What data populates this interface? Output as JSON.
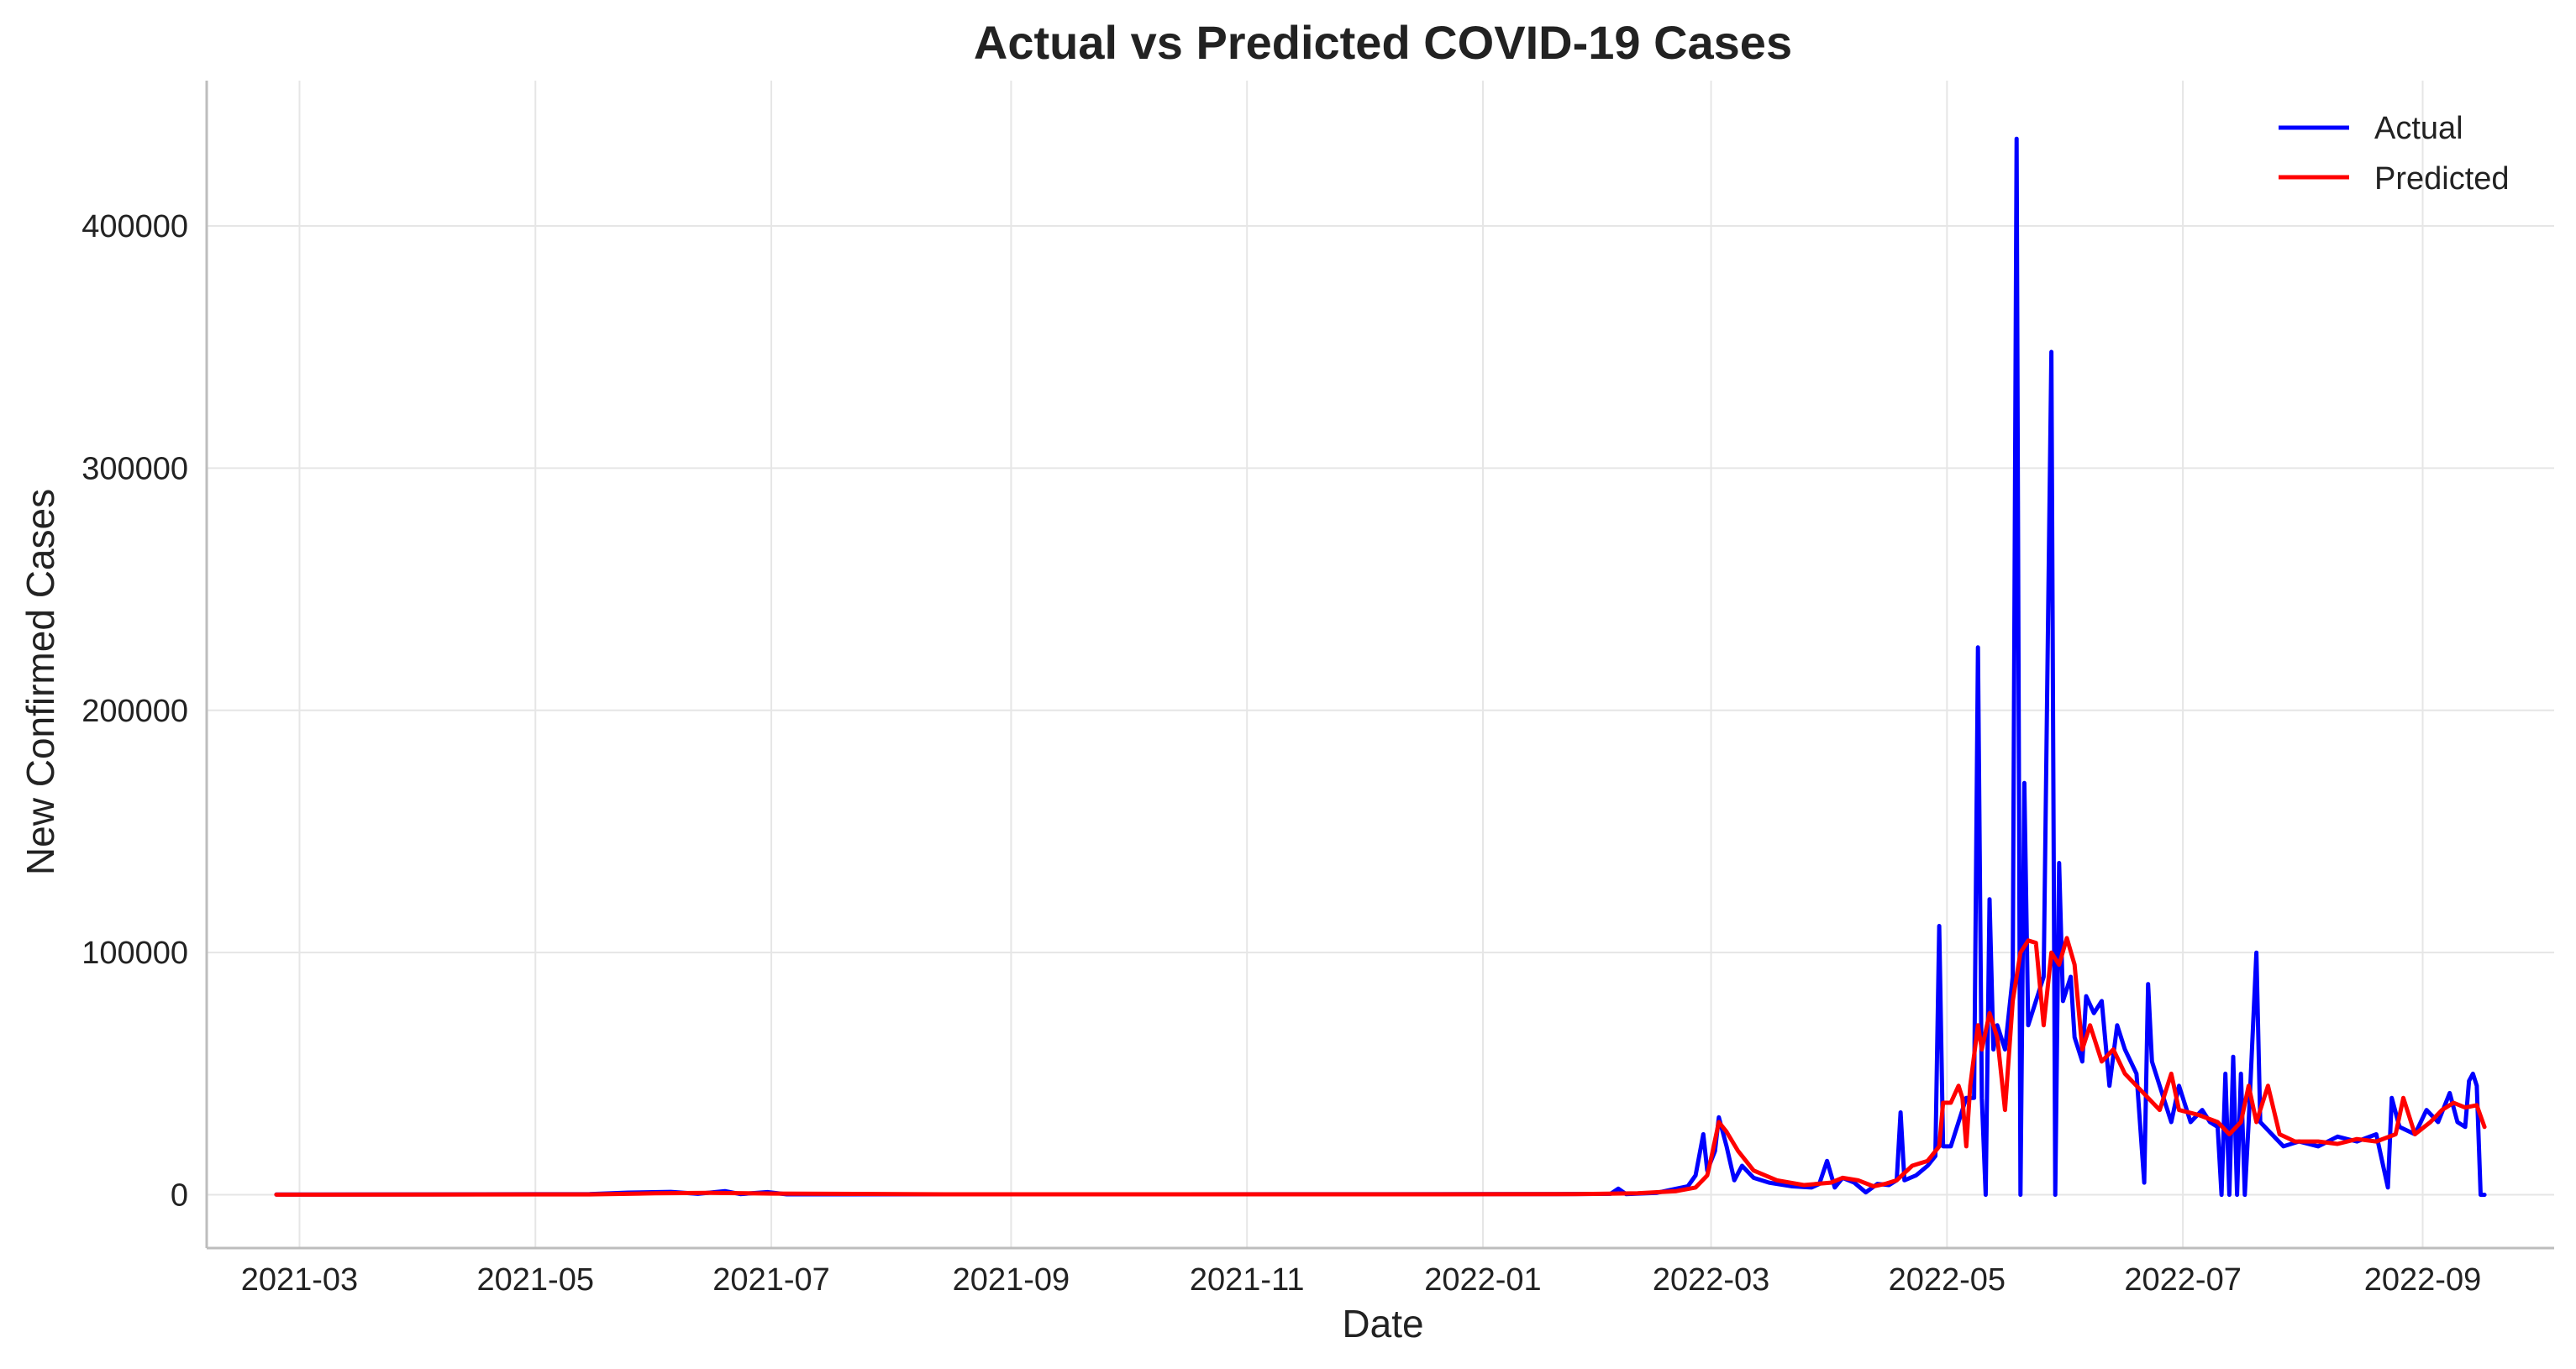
{
  "chart_data": {
    "type": "line",
    "title": "Actual vs Predicted COVID-19 Cases",
    "xlabel": "Date",
    "ylabel": "New Confirmed Cases",
    "x_range": [
      "2021-02-05",
      "2022-10-05"
    ],
    "ylim": [
      -22000,
      460000
    ],
    "x_ticks": [
      "2021-03",
      "2021-05",
      "2021-07",
      "2021-09",
      "2021-11",
      "2022-01",
      "2022-03",
      "2022-05",
      "2022-07",
      "2022-09"
    ],
    "y_ticks": [
      0,
      100000,
      200000,
      300000,
      400000
    ],
    "y_tick_labels": [
      "0",
      "100000",
      "200000",
      "300000",
      "400000"
    ],
    "grid": true,
    "legend": "top-right",
    "series": [
      {
        "name": "Actual",
        "color": "#0000ff",
        "points": [
          [
            "2021-02-23",
            100
          ],
          [
            "2021-04-01",
            150
          ],
          [
            "2021-05-15",
            300
          ],
          [
            "2021-05-25",
            900
          ],
          [
            "2021-06-05",
            1200
          ],
          [
            "2021-06-12",
            400
          ],
          [
            "2021-06-19",
            1500
          ],
          [
            "2021-06-23",
            300
          ],
          [
            "2021-06-30",
            1100
          ],
          [
            "2021-07-05",
            200
          ],
          [
            "2021-08-15",
            200
          ],
          [
            "2021-10-15",
            200
          ],
          [
            "2022-01-20",
            300
          ],
          [
            "2022-02-03",
            400
          ],
          [
            "2022-02-05",
            2500
          ],
          [
            "2022-02-07",
            300
          ],
          [
            "2022-02-15",
            800
          ],
          [
            "2022-02-20",
            2500
          ],
          [
            "2022-02-23",
            3500
          ],
          [
            "2022-02-25",
            8000
          ],
          [
            "2022-02-27",
            25000
          ],
          [
            "2022-02-28",
            10000
          ],
          [
            "2022-03-02",
            18000
          ],
          [
            "2022-03-03",
            32000
          ],
          [
            "2022-03-05",
            20000
          ],
          [
            "2022-03-07",
            6000
          ],
          [
            "2022-03-09",
            12000
          ],
          [
            "2022-03-12",
            7000
          ],
          [
            "2022-03-16",
            5000
          ],
          [
            "2022-03-22",
            3500
          ],
          [
            "2022-03-27",
            3000
          ],
          [
            "2022-03-29",
            4500
          ],
          [
            "2022-03-31",
            14000
          ],
          [
            "2022-04-02",
            3000
          ],
          [
            "2022-04-04",
            7000
          ],
          [
            "2022-04-07",
            5000
          ],
          [
            "2022-04-10",
            1000
          ],
          [
            "2022-04-13",
            4500
          ],
          [
            "2022-04-16",
            4000
          ],
          [
            "2022-04-18",
            6000
          ],
          [
            "2022-04-19",
            34000
          ],
          [
            "2022-04-20",
            6000
          ],
          [
            "2022-04-23",
            8000
          ],
          [
            "2022-04-26",
            12000
          ],
          [
            "2022-04-28",
            16000
          ],
          [
            "2022-04-29",
            111000
          ],
          [
            "2022-04-30",
            20000
          ],
          [
            "2022-05-02",
            20000
          ],
          [
            "2022-05-04",
            30000
          ],
          [
            "2022-05-06",
            40000
          ],
          [
            "2022-05-08",
            40000
          ],
          [
            "2022-05-09",
            226000
          ],
          [
            "2022-05-10",
            40000
          ],
          [
            "2022-05-11",
            0
          ],
          [
            "2022-05-12",
            122000
          ],
          [
            "2022-05-13",
            60000
          ],
          [
            "2022-05-14",
            70000
          ],
          [
            "2022-05-16",
            60000
          ],
          [
            "2022-05-18",
            90000
          ],
          [
            "2022-05-19",
            436000
          ],
          [
            "2022-05-20",
            0
          ],
          [
            "2022-05-21",
            170000
          ],
          [
            "2022-05-22",
            70000
          ],
          [
            "2022-05-24",
            80000
          ],
          [
            "2022-05-26",
            90000
          ],
          [
            "2022-05-28",
            348000
          ],
          [
            "2022-05-29",
            0
          ],
          [
            "2022-05-30",
            137000
          ],
          [
            "2022-05-31",
            80000
          ],
          [
            "2022-06-02",
            90000
          ],
          [
            "2022-06-03",
            65000
          ],
          [
            "2022-06-05",
            55000
          ],
          [
            "2022-06-06",
            82000
          ],
          [
            "2022-06-08",
            75000
          ],
          [
            "2022-06-10",
            80000
          ],
          [
            "2022-06-12",
            45000
          ],
          [
            "2022-06-14",
            70000
          ],
          [
            "2022-06-16",
            60000
          ],
          [
            "2022-06-19",
            50000
          ],
          [
            "2022-06-21",
            5000
          ],
          [
            "2022-06-22",
            87000
          ],
          [
            "2022-06-23",
            55000
          ],
          [
            "2022-06-26",
            40000
          ],
          [
            "2022-06-28",
            30000
          ],
          [
            "2022-06-30",
            45000
          ],
          [
            "2022-07-03",
            30000
          ],
          [
            "2022-07-06",
            35000
          ],
          [
            "2022-07-08",
            30000
          ],
          [
            "2022-07-10",
            28000
          ],
          [
            "2022-07-11",
            0
          ],
          [
            "2022-07-12",
            50000
          ],
          [
            "2022-07-13",
            0
          ],
          [
            "2022-07-14",
            57000
          ],
          [
            "2022-07-15",
            0
          ],
          [
            "2022-07-16",
            50000
          ],
          [
            "2022-07-17",
            0
          ],
          [
            "2022-07-18",
            30000
          ],
          [
            "2022-07-20",
            100000
          ],
          [
            "2022-07-21",
            30000
          ],
          [
            "2022-07-24",
            25000
          ],
          [
            "2022-07-27",
            20000
          ],
          [
            "2022-07-31",
            22000
          ],
          [
            "2022-08-05",
            20000
          ],
          [
            "2022-08-10",
            24000
          ],
          [
            "2022-08-15",
            22000
          ],
          [
            "2022-08-20",
            25000
          ],
          [
            "2022-08-23",
            3000
          ],
          [
            "2022-08-24",
            40000
          ],
          [
            "2022-08-26",
            28000
          ],
          [
            "2022-08-30",
            25000
          ],
          [
            "2022-09-02",
            35000
          ],
          [
            "2022-09-05",
            30000
          ],
          [
            "2022-09-08",
            42000
          ],
          [
            "2022-09-10",
            30000
          ],
          [
            "2022-09-12",
            28000
          ],
          [
            "2022-09-13",
            47000
          ],
          [
            "2022-09-14",
            50000
          ],
          [
            "2022-09-15",
            45000
          ],
          [
            "2022-09-16",
            0
          ],
          [
            "2022-09-17",
            0
          ]
        ]
      },
      {
        "name": "Predicted",
        "color": "#ff0000",
        "points": [
          [
            "2021-02-23",
            50
          ],
          [
            "2021-05-15",
            150
          ],
          [
            "2021-06-01",
            600
          ],
          [
            "2021-06-15",
            800
          ],
          [
            "2021-07-01",
            500
          ],
          [
            "2021-08-15",
            200
          ],
          [
            "2021-12-20",
            200
          ],
          [
            "2022-01-25",
            300
          ],
          [
            "2022-02-10",
            600
          ],
          [
            "2022-02-20",
            1500
          ],
          [
            "2022-02-25",
            3000
          ],
          [
            "2022-02-28",
            8000
          ],
          [
            "2022-03-01",
            15000
          ],
          [
            "2022-03-03",
            30000
          ],
          [
            "2022-03-05",
            26000
          ],
          [
            "2022-03-08",
            18000
          ],
          [
            "2022-03-12",
            10000
          ],
          [
            "2022-03-18",
            6000
          ],
          [
            "2022-03-25",
            4000
          ],
          [
            "2022-04-01",
            5000
          ],
          [
            "2022-04-04",
            7000
          ],
          [
            "2022-04-08",
            6000
          ],
          [
            "2022-04-12",
            3500
          ],
          [
            "2022-04-15",
            4500
          ],
          [
            "2022-04-18",
            6000
          ],
          [
            "2022-04-22",
            12000
          ],
          [
            "2022-04-26",
            14000
          ],
          [
            "2022-04-29",
            20000
          ],
          [
            "2022-04-30",
            38000
          ],
          [
            "2022-05-02",
            38000
          ],
          [
            "2022-05-04",
            45000
          ],
          [
            "2022-05-05",
            40000
          ],
          [
            "2022-05-06",
            20000
          ],
          [
            "2022-05-07",
            45000
          ],
          [
            "2022-05-09",
            70000
          ],
          [
            "2022-05-10",
            60000
          ],
          [
            "2022-05-12",
            75000
          ],
          [
            "2022-05-14",
            65000
          ],
          [
            "2022-05-16",
            35000
          ],
          [
            "2022-05-18",
            80000
          ],
          [
            "2022-05-20",
            100000
          ],
          [
            "2022-05-22",
            105000
          ],
          [
            "2022-05-24",
            104000
          ],
          [
            "2022-05-26",
            70000
          ],
          [
            "2022-05-28",
            100000
          ],
          [
            "2022-05-30",
            95000
          ],
          [
            "2022-06-01",
            106000
          ],
          [
            "2022-06-03",
            95000
          ],
          [
            "2022-06-05",
            60000
          ],
          [
            "2022-06-07",
            70000
          ],
          [
            "2022-06-10",
            55000
          ],
          [
            "2022-06-13",
            60000
          ],
          [
            "2022-06-16",
            50000
          ],
          [
            "2022-06-19",
            45000
          ],
          [
            "2022-06-22",
            40000
          ],
          [
            "2022-06-25",
            35000
          ],
          [
            "2022-06-28",
            50000
          ],
          [
            "2022-06-30",
            35000
          ],
          [
            "2022-07-05",
            33000
          ],
          [
            "2022-07-10",
            30000
          ],
          [
            "2022-07-13",
            25000
          ],
          [
            "2022-07-16",
            30000
          ],
          [
            "2022-07-18",
            45000
          ],
          [
            "2022-07-20",
            30000
          ],
          [
            "2022-07-23",
            45000
          ],
          [
            "2022-07-26",
            25000
          ],
          [
            "2022-07-30",
            22000
          ],
          [
            "2022-08-05",
            22000
          ],
          [
            "2022-08-10",
            21000
          ],
          [
            "2022-08-15",
            23000
          ],
          [
            "2022-08-20",
            22000
          ],
          [
            "2022-08-25",
            25000
          ],
          [
            "2022-08-27",
            40000
          ],
          [
            "2022-08-30",
            25000
          ],
          [
            "2022-09-03",
            30000
          ],
          [
            "2022-09-06",
            35000
          ],
          [
            "2022-09-09",
            38000
          ],
          [
            "2022-09-12",
            36000
          ],
          [
            "2022-09-15",
            37000
          ],
          [
            "2022-09-17",
            28000
          ]
        ]
      }
    ]
  }
}
